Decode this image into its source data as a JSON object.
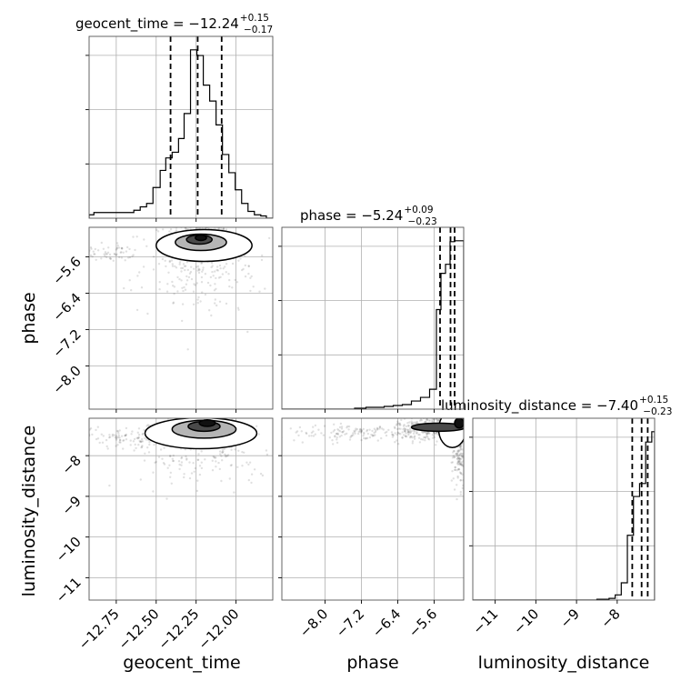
{
  "chart_data": {
    "type": "corner",
    "parameters": [
      {
        "name": "geocent_time",
        "title": {
          "base": "geocent_time = −12.24",
          "plus": "+0.15",
          "minus": "−0.17"
        },
        "median": -12.24,
        "quantiles": [
          -12.41,
          -12.24,
          -12.09
        ],
        "range": [
          -12.92,
          -11.77
        ],
        "ticks": [
          -12.75,
          -12.5,
          -12.25,
          -12.0
        ],
        "tick_labels": [
          "−12.75",
          "−12.50",
          "−12.25",
          "−12.00"
        ],
        "hist": {
          "edges": [
            -12.92,
            -12.89,
            -12.845,
            -12.8,
            -12.765,
            -12.72,
            -12.68,
            -12.64,
            -12.6,
            -12.56,
            -12.52,
            -12.475,
            -12.44,
            -12.4,
            -12.36,
            -12.325,
            -12.285,
            -12.245,
            -12.205,
            -12.165,
            -12.125,
            -12.085,
            -12.045,
            -12.005,
            -11.965,
            -11.925,
            -11.885,
            -11.845,
            -11.81,
            -11.77
          ],
          "counts": [
            3,
            5,
            5,
            5,
            5,
            5,
            5,
            7,
            10,
            13,
            27,
            42,
            53,
            58,
            70,
            92,
            148,
            143,
            117,
            103,
            82,
            56,
            40,
            25,
            13,
            6,
            3,
            2,
            0
          ]
        }
      },
      {
        "name": "phase",
        "title": {
          "base": "phase = −5.24",
          "plus": "+0.09",
          "minus": "−0.23"
        },
        "median": -5.24,
        "quantiles": [
          -5.47,
          -5.24,
          -5.15
        ],
        "range": [
          -8.95,
          -4.95
        ],
        "ticks": [
          -8.0,
          -7.2,
          -6.4,
          -5.6
        ],
        "tick_labels": [
          "−8.0",
          "−7.2",
          "−6.4",
          "−5.6"
        ],
        "hist": {
          "edges": [
            -8.95,
            -7.35,
            -7.1,
            -6.9,
            -6.7,
            -6.5,
            -6.3,
            -6.1,
            -5.9,
            -5.7,
            -5.55,
            -5.45,
            -5.35,
            -5.25,
            -5.15,
            -5.05,
            -4.95
          ],
          "counts": [
            0,
            1,
            2,
            2,
            3,
            4,
            5,
            9,
            13,
            22,
            110,
            150,
            160,
            185,
            186,
            186
          ]
        }
      },
      {
        "name": "luminosity_distance",
        "title": {
          "base": "luminosity_distance = −7.40",
          "plus": "+0.15",
          "minus": "−0.23"
        },
        "median": -7.4,
        "quantiles": [
          -7.63,
          -7.4,
          -7.25
        ],
        "range": [
          -11.55,
          -7.08
        ],
        "ticks": [
          -11,
          -10,
          -9,
          -8
        ],
        "tick_labels": [
          "−11",
          "−10",
          "−9",
          "−8"
        ],
        "hist": {
          "edges": [
            -11.55,
            -8.5,
            -8.2,
            -8.05,
            -7.9,
            -7.75,
            -7.6,
            -7.45,
            -7.3,
            -7.15,
            -7.08
          ],
          "counts": [
            0,
            1,
            2,
            6,
            20,
            75,
            120,
            135,
            183,
            195
          ]
        }
      }
    ],
    "pairs": [
      {
        "x": "geocent_time",
        "y": "phase",
        "cores": [
          {
            "cx": -12.24,
            "cy": -5.27,
            "sx": 0.1,
            "sy": 0.23,
            "n": 520
          },
          {
            "cx": -12.8,
            "cy": -5.5,
            "sx": 0.08,
            "sy": 0.1,
            "n": 60
          },
          {
            "cx": -12.2,
            "cy": -5.9,
            "sx": 0.2,
            "sy": 0.45,
            "n": 200
          }
        ],
        "scatter_extent": {
          "x": [
            -12.92,
            -11.77
          ],
          "y": [
            -8.95,
            -4.95
          ]
        },
        "contours": [
          {
            "cx": -12.2,
            "cy": -5.35,
            "rx": 0.3,
            "ry": 0.35,
            "fill": "#ffffff"
          },
          {
            "cx": -12.22,
            "cy": -5.28,
            "rx": 0.16,
            "ry": 0.18,
            "fill": "#b5b5b5"
          },
          {
            "cx": -12.23,
            "cy": -5.22,
            "rx": 0.08,
            "ry": 0.1,
            "fill": "#4a4a4a"
          },
          {
            "cx": -12.22,
            "cy": -5.18,
            "rx": 0.035,
            "ry": 0.06,
            "fill": "#111111"
          }
        ]
      },
      {
        "x": "geocent_time",
        "y": "luminosity_distance",
        "cores": [
          {
            "cx": -12.22,
            "cy": -7.35,
            "sx": 0.1,
            "sy": 0.15,
            "n": 520
          },
          {
            "cx": -12.6,
            "cy": -7.55,
            "sx": 0.25,
            "sy": 0.12,
            "n": 180
          },
          {
            "cx": -12.2,
            "cy": -8.0,
            "sx": 0.2,
            "sy": 0.4,
            "n": 160
          }
        ],
        "scatter_extent": {
          "x": [
            -12.92,
            -11.77
          ],
          "y": [
            -11.55,
            -7.08
          ]
        },
        "contours": [
          {
            "cx": -12.22,
            "cy": -7.45,
            "rx": 0.35,
            "ry": 0.38,
            "fill": "#ffffff"
          },
          {
            "cx": -12.2,
            "cy": -7.35,
            "rx": 0.2,
            "ry": 0.22,
            "fill": "#b5b5b5"
          },
          {
            "cx": -12.2,
            "cy": -7.28,
            "rx": 0.1,
            "ry": 0.12,
            "fill": "#4a4a4a"
          },
          {
            "cx": -12.18,
            "cy": -7.2,
            "rx": 0.05,
            "ry": 0.08,
            "fill": "#111111"
          }
        ]
      },
      {
        "x": "phase",
        "y": "luminosity_distance",
        "cores": [
          {
            "cx": -5.6,
            "cy": -7.3,
            "sx": 0.4,
            "sy": 0.15,
            "n": 420
          },
          {
            "cx": -7.3,
            "cy": -7.45,
            "sx": 0.8,
            "sy": 0.1,
            "n": 140
          },
          {
            "cx": -5.05,
            "cy": -7.8,
            "sx": 0.08,
            "sy": 0.5,
            "n": 200
          }
        ],
        "scatter_extent": {
          "x": [
            -8.95,
            -4.95
          ],
          "y": [
            -11.55,
            -7.08
          ]
        },
        "contours": [
          {
            "cx": -5.2,
            "cy": -7.35,
            "rx": 0.3,
            "ry": 0.45,
            "fill": "#ffffff"
          },
          {
            "cx": -5.5,
            "cy": -7.3,
            "rx": 0.6,
            "ry": 0.1,
            "fill": "#4a4a4a"
          },
          {
            "cx": -5.05,
            "cy": -7.2,
            "rx": 0.1,
            "ry": 0.12,
            "fill": "#111111"
          }
        ]
      }
    ]
  }
}
